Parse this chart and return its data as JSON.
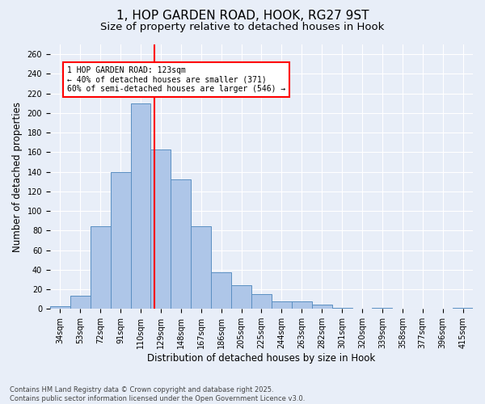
{
  "title1": "1, HOP GARDEN ROAD, HOOK, RG27 9ST",
  "title2": "Size of property relative to detached houses in Hook",
  "xlabel": "Distribution of detached houses by size in Hook",
  "ylabel": "Number of detached properties",
  "bar_labels": [
    "34sqm",
    "53sqm",
    "72sqm",
    "91sqm",
    "110sqm",
    "129sqm",
    "148sqm",
    "167sqm",
    "186sqm",
    "205sqm",
    "225sqm",
    "244sqm",
    "263sqm",
    "282sqm",
    "301sqm",
    "320sqm",
    "339sqm",
    "358sqm",
    "377sqm",
    "396sqm",
    "415sqm"
  ],
  "bar_values": [
    3,
    13,
    84,
    140,
    210,
    163,
    132,
    84,
    37,
    24,
    15,
    8,
    8,
    4,
    1,
    0,
    1,
    0,
    0,
    0,
    1
  ],
  "bar_color": "#aec6e8",
  "bar_edgecolor": "#5a8fc2",
  "vline_color": "red",
  "annotation_text": "1 HOP GARDEN ROAD: 123sqm\n← 40% of detached houses are smaller (371)\n60% of semi-detached houses are larger (546) →",
  "annotation_box_color": "white",
  "annotation_box_edgecolor": "red",
  "ylim": [
    0,
    270
  ],
  "yticks": [
    0,
    20,
    40,
    60,
    80,
    100,
    120,
    140,
    160,
    180,
    200,
    220,
    240,
    260
  ],
  "bg_color": "#e8eef8",
  "grid_color": "white",
  "footer": "Contains HM Land Registry data © Crown copyright and database right 2025.\nContains public sector information licensed under the Open Government Licence v3.0.",
  "title1_fontsize": 11,
  "title2_fontsize": 9.5,
  "tick_fontsize": 7,
  "label_fontsize": 8.5
}
